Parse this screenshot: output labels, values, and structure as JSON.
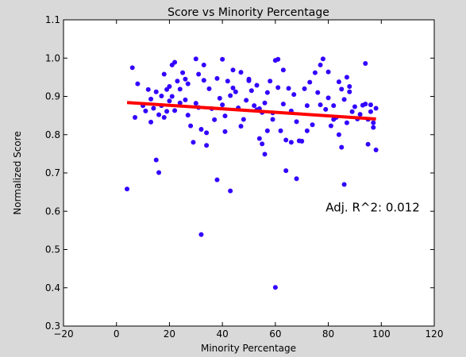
{
  "chart_data": {
    "type": "scatter",
    "title": "Score vs Minority Percentage",
    "xlabel": "Minority Percentage",
    "ylabel": "Normalized Score",
    "xlim": [
      -20,
      120
    ],
    "ylim": [
      0.3,
      1.1
    ],
    "xticks": [
      -20,
      0,
      20,
      40,
      60,
      80,
      100,
      120
    ],
    "yticks": [
      0.3,
      0.4,
      0.5,
      0.6,
      0.7,
      0.8,
      0.9,
      1.0,
      1.1
    ],
    "xtick_labels": [
      "−20",
      "0",
      "20",
      "40",
      "60",
      "80",
      "100",
      "120"
    ],
    "ytick_labels": [
      "0.3",
      "0.4",
      "0.5",
      "0.6",
      "0.7",
      "0.8",
      "0.9",
      "1.0",
      "1.1"
    ],
    "grid": false,
    "point_color": "#3300ff",
    "line_color": "#ff0000",
    "annotation": {
      "text": "Adj. R^2: 0.012",
      "x": 79,
      "y": 0.61
    },
    "regression": {
      "x": [
        4,
        98
      ],
      "y": [
        0.884,
        0.841
      ]
    },
    "points": [
      [
        4,
        0.658
      ],
      [
        6,
        0.975
      ],
      [
        7,
        0.845
      ],
      [
        8,
        0.933
      ],
      [
        10,
        0.876
      ],
      [
        11,
        0.862
      ],
      [
        12,
        0.918
      ],
      [
        13,
        0.893
      ],
      [
        13,
        0.833
      ],
      [
        14,
        0.869
      ],
      [
        15,
        0.912
      ],
      [
        15,
        0.734
      ],
      [
        16,
        0.701
      ],
      [
        16,
        0.852
      ],
      [
        17,
        0.901
      ],
      [
        17,
        0.876
      ],
      [
        18,
        0.958
      ],
      [
        18,
        0.845
      ],
      [
        19,
        0.918
      ],
      [
        19,
        0.861
      ],
      [
        20,
        0.926
      ],
      [
        20,
        0.888
      ],
      [
        21,
        0.982
      ],
      [
        21,
        0.9
      ],
      [
        22,
        0.989
      ],
      [
        22,
        0.863
      ],
      [
        23,
        0.94
      ],
      [
        24,
        0.919
      ],
      [
        24,
        0.883
      ],
      [
        25,
        0.962
      ],
      [
        26,
        0.945
      ],
      [
        26,
        0.891
      ],
      [
        27,
        0.851
      ],
      [
        27,
        0.933
      ],
      [
        28,
        0.823
      ],
      [
        29,
        0.78
      ],
      [
        30,
        0.998
      ],
      [
        30,
        0.882
      ],
      [
        31,
        0.958
      ],
      [
        31,
        0.871
      ],
      [
        32,
        0.539
      ],
      [
        32,
        0.814
      ],
      [
        33,
        0.982
      ],
      [
        33,
        0.942
      ],
      [
        34,
        0.772
      ],
      [
        34,
        0.805
      ],
      [
        35,
        0.92
      ],
      [
        36,
        0.868
      ],
      [
        37,
        0.839
      ],
      [
        38,
        0.682
      ],
      [
        38,
        0.947
      ],
      [
        39,
        0.895
      ],
      [
        40,
        0.997
      ],
      [
        40,
        0.878
      ],
      [
        41,
        0.808
      ],
      [
        41,
        0.849
      ],
      [
        42,
        0.94
      ],
      [
        43,
        0.902
      ],
      [
        43,
        0.653
      ],
      [
        44,
        0.922
      ],
      [
        44,
        0.969
      ],
      [
        45,
        0.912
      ],
      [
        46,
        0.87
      ],
      [
        47,
        0.822
      ],
      [
        47,
        0.963
      ],
      [
        48,
        0.84
      ],
      [
        49,
        0.89
      ],
      [
        50,
        0.945
      ],
      [
        50,
        0.941
      ],
      [
        51,
        0.915
      ],
      [
        52,
        0.876
      ],
      [
        53,
        0.865
      ],
      [
        53,
        0.929
      ],
      [
        54,
        0.79
      ],
      [
        54,
        0.868
      ],
      [
        55,
        0.776
      ],
      [
        55,
        0.858
      ],
      [
        56,
        0.883
      ],
      [
        56,
        0.749
      ],
      [
        57,
        0.81
      ],
      [
        57,
        0.91
      ],
      [
        58,
        0.94
      ],
      [
        59,
        0.84
      ],
      [
        59,
        0.857
      ],
      [
        60,
        0.994
      ],
      [
        60,
        0.401
      ],
      [
        61,
        0.997
      ],
      [
        61,
        0.923
      ],
      [
        62,
        0.81
      ],
      [
        63,
        0.88
      ],
      [
        63,
        0.969
      ],
      [
        64,
        0.786
      ],
      [
        64,
        0.706
      ],
      [
        65,
        0.921
      ],
      [
        66,
        0.862
      ],
      [
        66,
        0.78
      ],
      [
        67,
        0.905
      ],
      [
        68,
        0.834
      ],
      [
        68,
        0.685
      ],
      [
        69,
        0.784
      ],
      [
        70,
        0.783
      ],
      [
        71,
        0.92
      ],
      [
        72,
        0.81
      ],
      [
        72,
        0.876
      ],
      [
        73,
        0.937
      ],
      [
        74,
        0.826
      ],
      [
        75,
        0.962
      ],
      [
        76,
        0.91
      ],
      [
        77,
        0.878
      ],
      [
        77,
        0.982
      ],
      [
        78,
        0.998
      ],
      [
        79,
        0.866
      ],
      [
        80,
        0.896
      ],
      [
        80,
        0.964
      ],
      [
        81,
        0.823
      ],
      [
        82,
        0.84
      ],
      [
        82,
        0.876
      ],
      [
        83,
        0.845
      ],
      [
        84,
        0.8
      ],
      [
        84,
        0.938
      ],
      [
        85,
        0.919
      ],
      [
        85,
        0.767
      ],
      [
        86,
        0.892
      ],
      [
        86,
        0.67
      ],
      [
        87,
        0.831
      ],
      [
        87,
        0.95
      ],
      [
        88,
        0.926
      ],
      [
        88,
        0.912
      ],
      [
        89,
        0.86
      ],
      [
        90,
        0.873
      ],
      [
        91,
        0.841
      ],
      [
        92,
        0.853
      ],
      [
        93,
        0.877
      ],
      [
        94,
        0.986
      ],
      [
        94,
        0.88
      ],
      [
        95,
        0.84
      ],
      [
        95,
        0.775
      ],
      [
        96,
        0.86
      ],
      [
        96,
        0.878
      ],
      [
        97,
        0.819
      ],
      [
        97,
        0.831
      ],
      [
        98,
        0.869
      ],
      [
        98,
        0.76
      ]
    ]
  }
}
